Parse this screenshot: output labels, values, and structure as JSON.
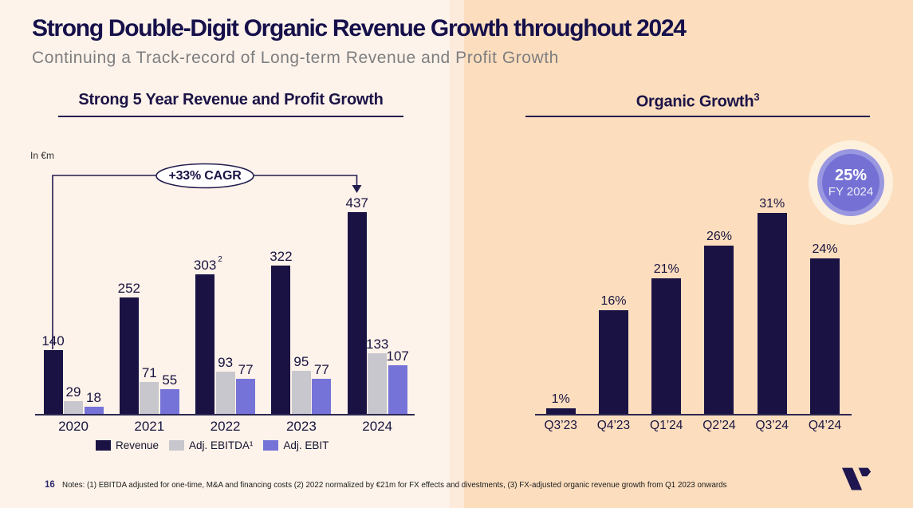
{
  "header": {
    "title": "Strong Double-Digit Organic Revenue Growth throughout 2024",
    "subtitle": "Continuing a Track-record of Long-term Revenue and Profit Growth"
  },
  "footer": {
    "page_number": "16",
    "notes": "Notes: (1) EBITDA adjusted for one-time, M&A and financing costs (2) 2022 normalized by €21m for FX effects and divestments, (3) FX-adjusted organic revenue growth from Q1 2023 onwards"
  },
  "colors": {
    "background_left": "#fdf3ea",
    "background_right": "#fcdebe",
    "navy": "#1b1244",
    "revenue_bar": "#1b1244",
    "ebitda_bar": "#c8c7cd",
    "ebit_bar": "#7673d8",
    "badge_inner": "#7571d4",
    "badge_ring": "#9a97e1",
    "subtitle_gray": "#7e7e80"
  },
  "chart_data": [
    {
      "id": "revenue_profit",
      "type": "bar",
      "title": "Strong 5 Year Revenue and Profit Growth",
      "unit_label": "In €m",
      "categories": [
        "2020",
        "2021",
        "2022",
        "2023",
        "2024"
      ],
      "series": [
        {
          "name": "Revenue",
          "color": "#1b1244",
          "values": [
            140,
            252,
            303,
            322,
            437
          ],
          "label_sups": [
            "",
            "",
            "2",
            "",
            ""
          ]
        },
        {
          "name": "Adj. EBITDA¹",
          "color": "#c8c7cd",
          "values": [
            29,
            71,
            93,
            95,
            133
          ],
          "label_sups": [
            "",
            "",
            "",
            "",
            ""
          ]
        },
        {
          "name": "Adj. EBIT",
          "color": "#7673d8",
          "values": [
            18,
            55,
            77,
            77,
            107
          ],
          "label_sups": [
            "",
            "",
            "",
            "",
            ""
          ]
        }
      ],
      "annotation": "+33% CAGR",
      "legend_position": "bottom",
      "grid": false,
      "ylim": [
        0,
        460
      ]
    },
    {
      "id": "organic_growth",
      "type": "bar",
      "title": "Organic Growth",
      "title_sup": "3",
      "categories": [
        "Q3’23",
        "Q4’23",
        "Q1’24",
        "Q2’24",
        "Q3’24",
        "Q4’24"
      ],
      "values": [
        1,
        16,
        21,
        26,
        31,
        24
      ],
      "value_suffix": "%",
      "bar_color": "#1b1244",
      "badge": {
        "value": "25%",
        "label": "FY 2024"
      },
      "grid": false,
      "ylim": [
        0,
        35
      ]
    }
  ]
}
